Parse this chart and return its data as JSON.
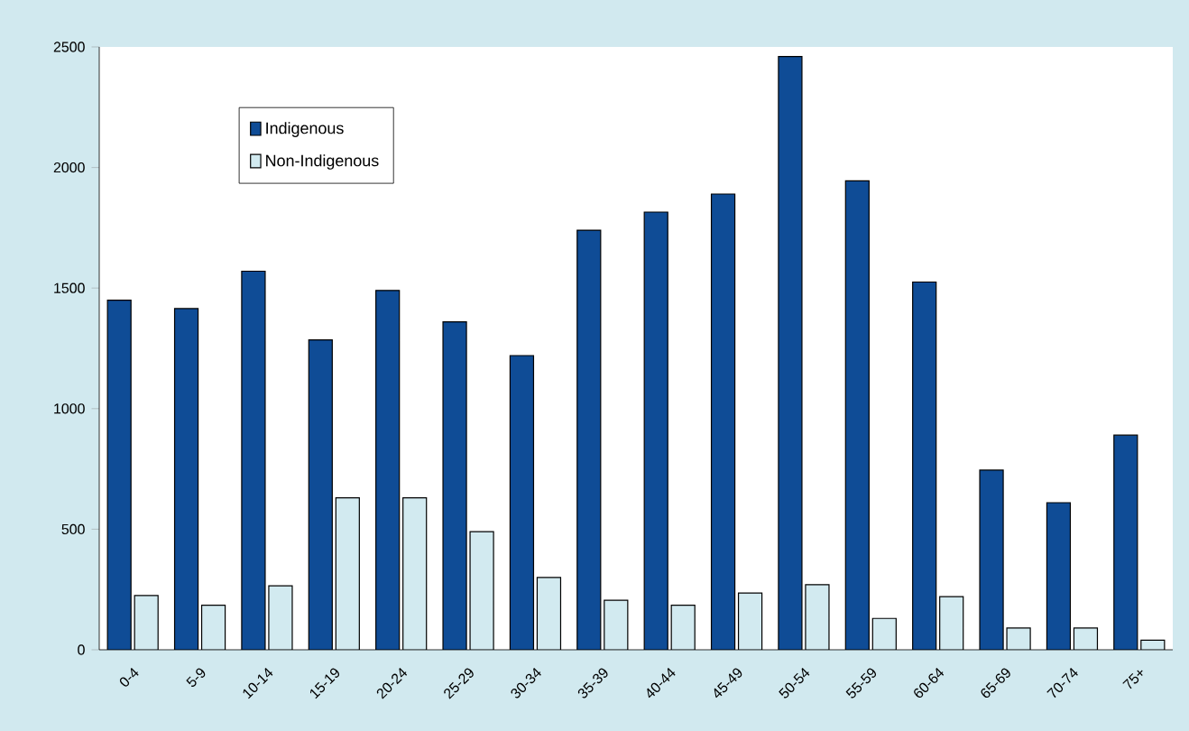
{
  "chart_data": {
    "type": "bar",
    "categories": [
      "0-4",
      "5-9",
      "10-14",
      "15-19",
      "20-24",
      "25-29",
      "30-34",
      "35-39",
      "40-44",
      "45-49",
      "50-54",
      "55-59",
      "60-64",
      "65-69",
      "70-74",
      "75+"
    ],
    "series": [
      {
        "name": "Indigenous",
        "color": "#0f4c96",
        "values": [
          1450,
          1415,
          1570,
          1285,
          1490,
          1360,
          1220,
          1740,
          1815,
          1890,
          2460,
          1945,
          1525,
          745,
          610,
          890
        ]
      },
      {
        "name": "Non-Indigenous",
        "color": "#d2eaf0",
        "values": [
          225,
          185,
          265,
          630,
          630,
          490,
          300,
          205,
          185,
          235,
          270,
          130,
          220,
          90,
          90,
          40
        ]
      }
    ],
    "ylim": [
      0,
      2500
    ],
    "yticks": [
      0,
      500,
      1000,
      1500,
      2000,
      2500
    ],
    "grid": false,
    "legend": "top left"
  }
}
